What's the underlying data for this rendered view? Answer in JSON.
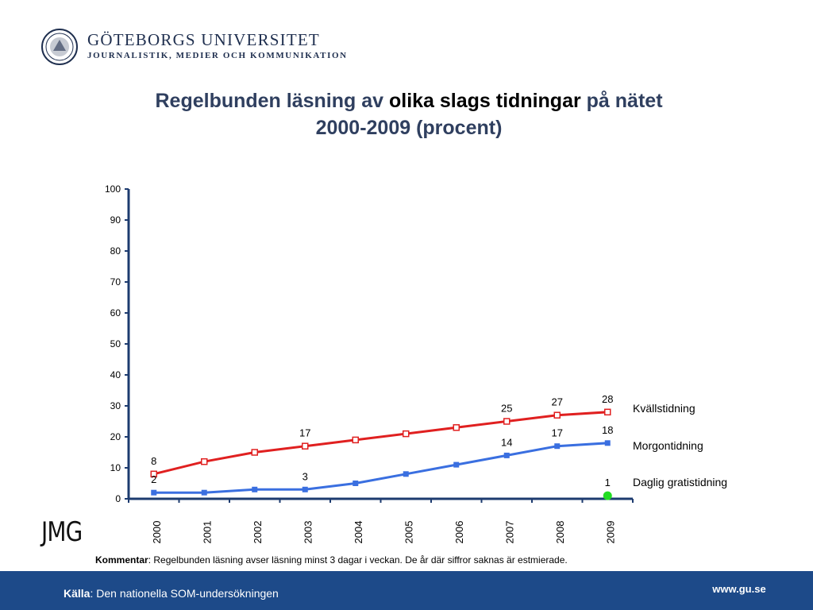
{
  "header": {
    "university": "GÖTEBORGS UNIVERSITET",
    "department": "JOURNALISTIK, MEDIER OCH KOMMUNIKATION"
  },
  "title": {
    "part1": "Regelbunden läsning av ",
    "part2": "olika slags tidningar",
    "part3": " på nätet",
    "line2": "2000-2009 (procent)"
  },
  "chart_data": {
    "type": "line",
    "x": [
      "2000",
      "2001",
      "2002",
      "2003",
      "2004",
      "2005",
      "2006",
      "2007",
      "2008",
      "2009"
    ],
    "ylim": [
      0,
      100
    ],
    "yticks": [
      0,
      10,
      20,
      30,
      40,
      50,
      60,
      70,
      80,
      90,
      100
    ],
    "grid": false,
    "series": [
      {
        "name": "Kvällstidning",
        "color": "#e02020",
        "marker": "hollow-square",
        "values": [
          8,
          12,
          15,
          17,
          19,
          21,
          23,
          25,
          27,
          28
        ],
        "labels": {
          "0": "8",
          "3": "17",
          "7": "25",
          "8": "27",
          "9": "28"
        }
      },
      {
        "name": "Morgontidning",
        "color": "#3a6fe0",
        "marker": "filled-square",
        "values": [
          2,
          2,
          3,
          3,
          5,
          8,
          11,
          14,
          17,
          18
        ],
        "labels": {
          "0": "2",
          "3": "3",
          "7": "14",
          "8": "17",
          "9": "18"
        }
      },
      {
        "name": "Daglig gratistidning",
        "color": "#22dd22",
        "marker": "filled-circle",
        "values": [
          null,
          null,
          null,
          null,
          null,
          null,
          null,
          null,
          null,
          1
        ],
        "labels": {
          "9": "1"
        }
      }
    ]
  },
  "logo": {
    "jmg": "JMG"
  },
  "comment": {
    "label": "Kommentar",
    "text": ": Regelbunden läsning avser läsning minst 3 dagar i veckan. De år där siffror saknas är estmierade."
  },
  "footer": {
    "source_label": "Källa",
    "source_text": ": Den nationella SOM-undersökningen",
    "url": "www.gu.se"
  }
}
